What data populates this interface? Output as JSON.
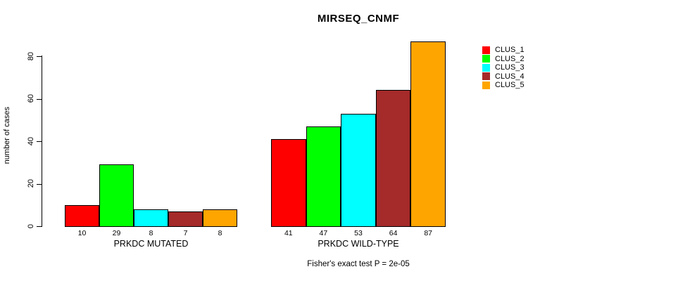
{
  "chart_data": {
    "type": "bar",
    "title": "MIRSEQ_CNMF",
    "ylabel": "number of cases",
    "xlabel": "",
    "caption": "Fisher's exact test P = 2e-05",
    "yticks": [
      0,
      20,
      40,
      60,
      80
    ],
    "ylim": [
      0,
      87
    ],
    "grid": false,
    "legend_position": "right",
    "background": "#FFFFFF",
    "axis_color": "#000000",
    "series": [
      {
        "name": "CLUS_1",
        "color": "#FF0000"
      },
      {
        "name": "CLUS_2",
        "color": "#00FF00"
      },
      {
        "name": "CLUS_3",
        "color": "#00FFFF"
      },
      {
        "name": "CLUS_4",
        "color": "#A52A2A"
      },
      {
        "name": "CLUS_5",
        "color": "#FFA500"
      }
    ],
    "groups": [
      {
        "label": "PRKDC MUTATED",
        "values": [
          10,
          29,
          8,
          7,
          8
        ]
      },
      {
        "label": "PRKDC WILD-TYPE",
        "values": [
          41,
          47,
          53,
          64,
          87
        ]
      }
    ]
  }
}
